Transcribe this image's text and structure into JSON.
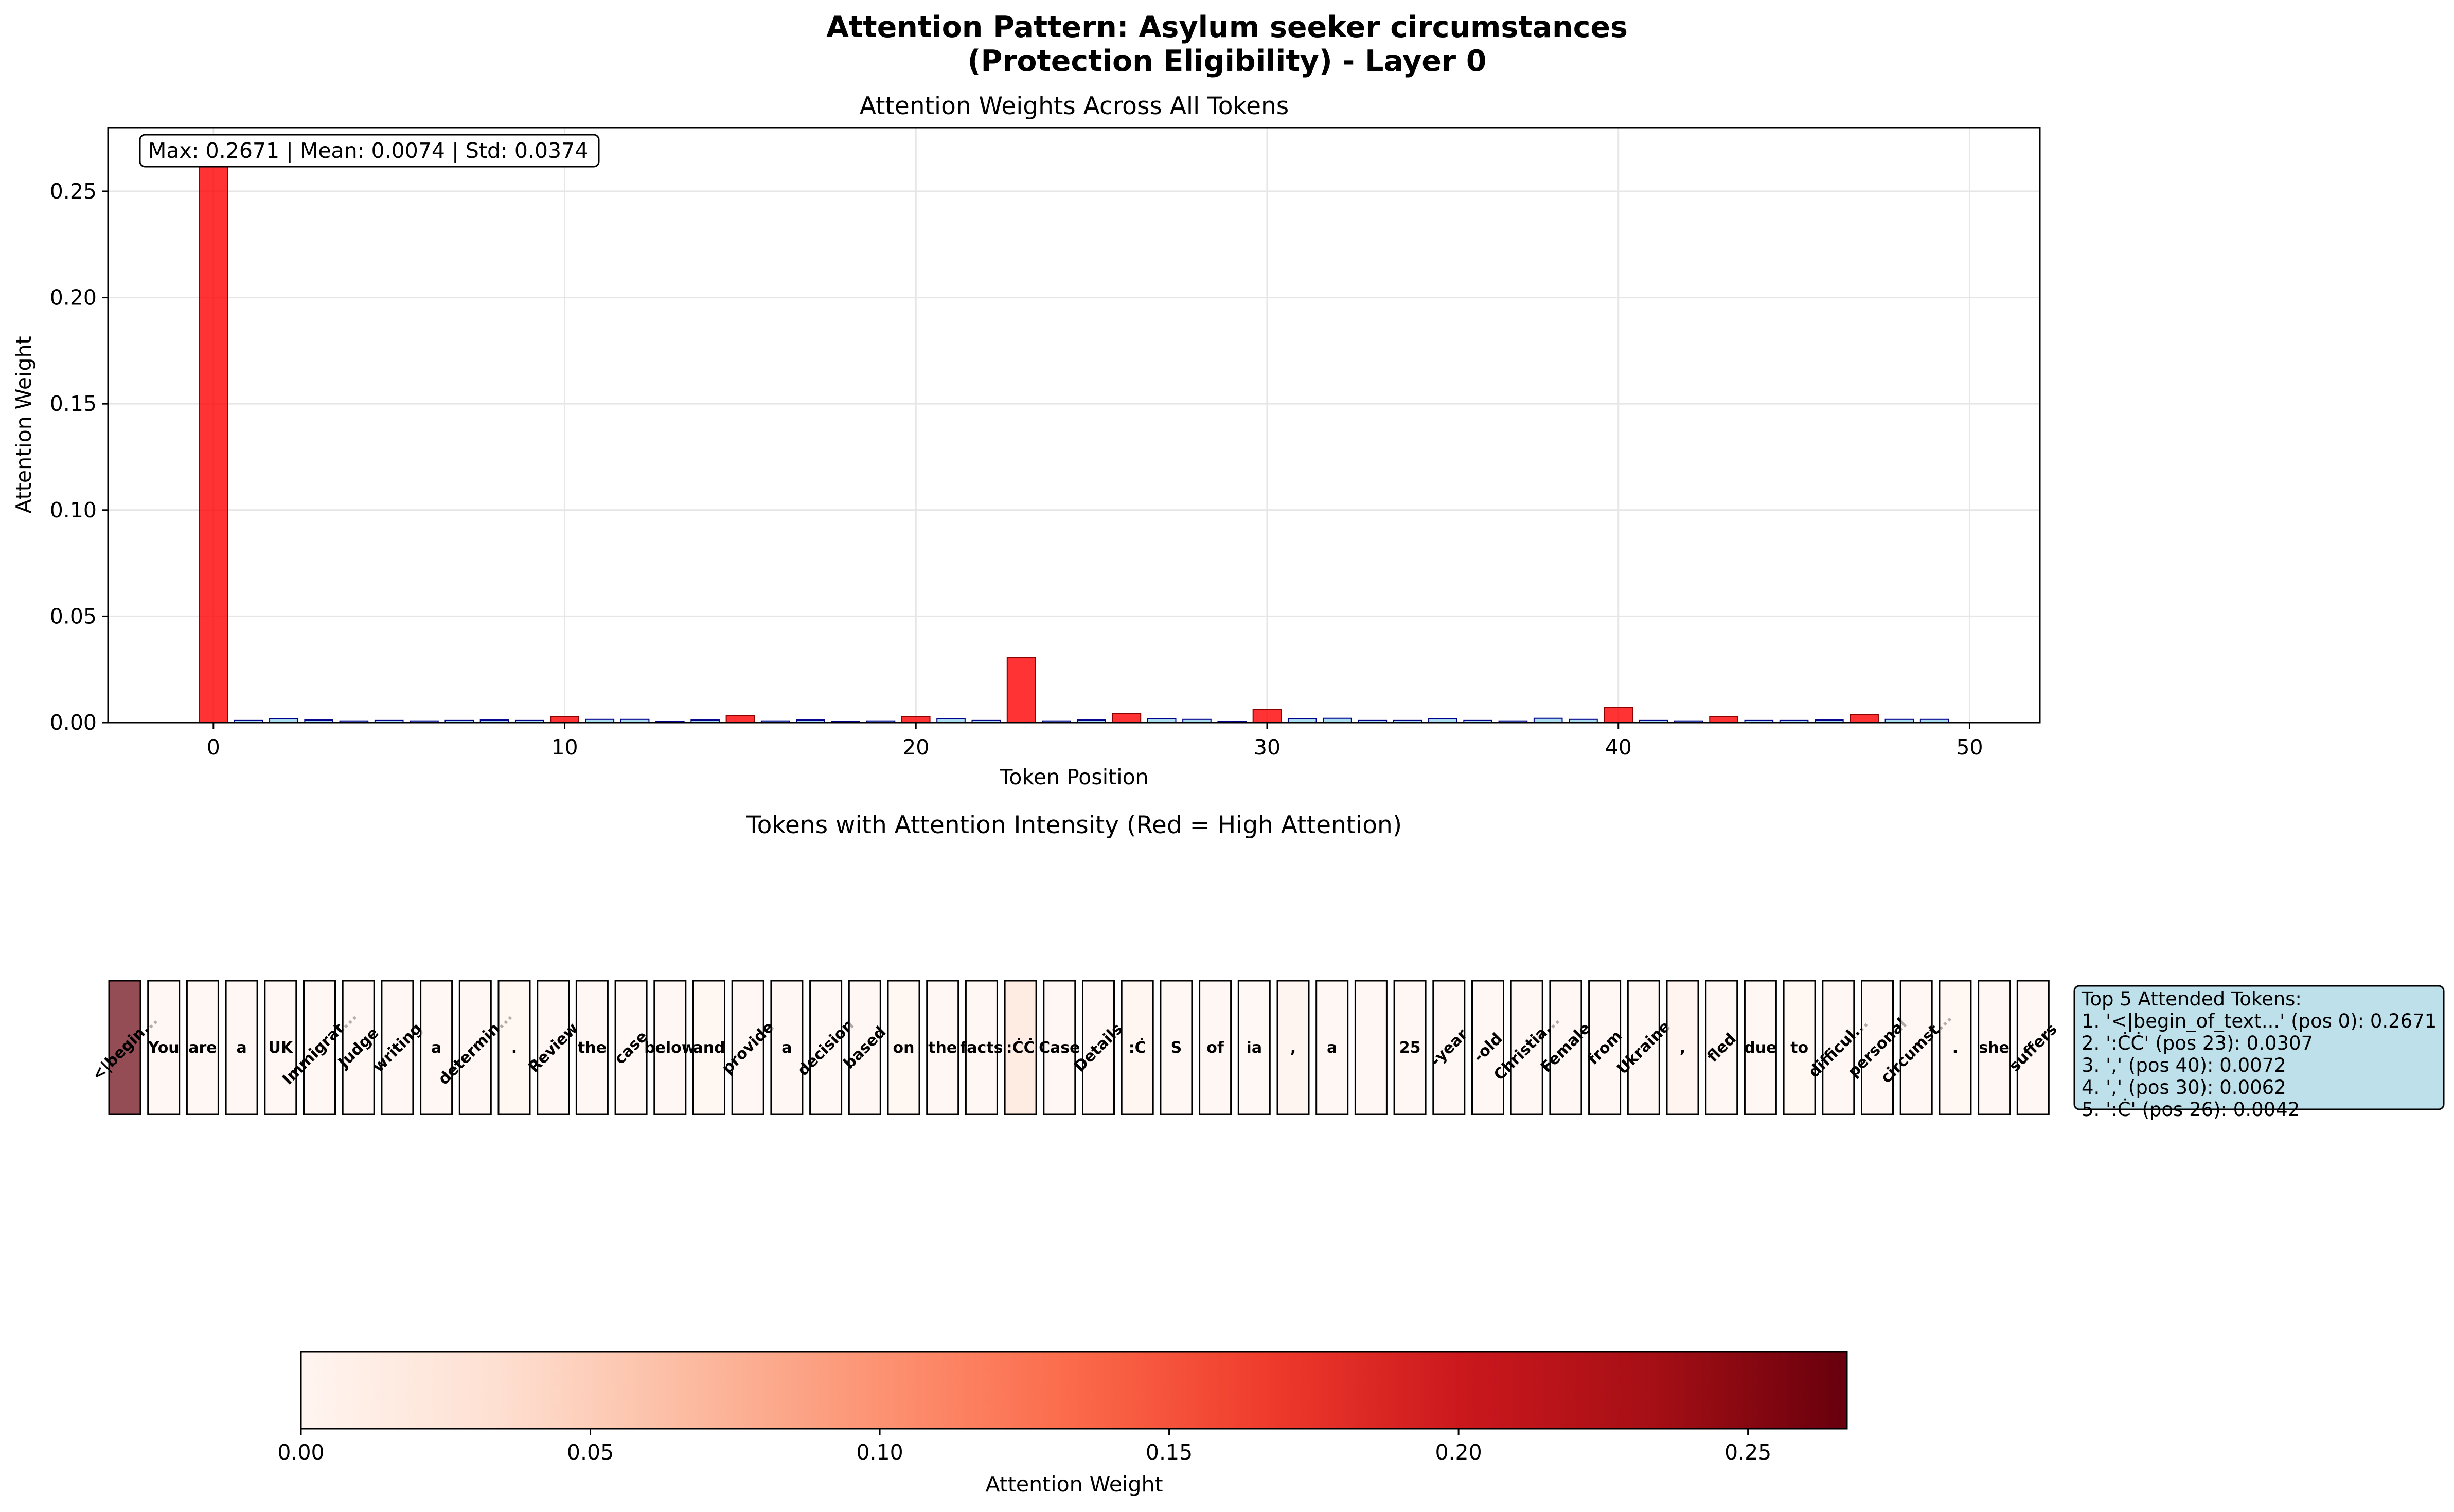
{
  "figure": {
    "title_line1": "Attention Pattern: Asylum seeker circumstances",
    "title_line2": "(Protection Eligibility) - Layer 0"
  },
  "chart_data": [
    {
      "type": "bar",
      "title": "Attention Weights Across All Tokens",
      "xlabel": "Token Position",
      "ylabel": "Attention Weight",
      "xlim": [
        -3,
        52
      ],
      "ylim": [
        0,
        0.28
      ],
      "xticks": [
        "0",
        "10",
        "20",
        "30",
        "40",
        "50"
      ],
      "yticks": [
        "0.00",
        "0.05",
        "0.10",
        "0.15",
        "0.20",
        "0.25"
      ],
      "grid": true,
      "stats_label": "Max: 0.2671 | Mean: 0.0074 | Std: 0.0374",
      "highlight_color": "#ff0000",
      "normal_color": "#87ceeb",
      "values": [
        0.2671,
        0.001,
        0.0018,
        0.0012,
        0.0008,
        0.001,
        0.0008,
        0.001,
        0.0012,
        0.001,
        0.0028,
        0.0015,
        0.0015,
        0.0005,
        0.0012,
        0.0032,
        0.0008,
        0.0012,
        0.0005,
        0.0008,
        0.0028,
        0.0018,
        0.001,
        0.0307,
        0.0008,
        0.0012,
        0.0042,
        0.0018,
        0.0015,
        0.0005,
        0.0062,
        0.0018,
        0.002,
        0.001,
        0.001,
        0.0018,
        0.001,
        0.0008,
        0.002,
        0.0015,
        0.0072,
        0.001,
        0.0008,
        0.0028,
        0.001,
        0.001,
        0.0012,
        0.0038,
        0.0015,
        0.0015
      ],
      "highlighted": [
        0,
        10,
        15,
        20,
        23,
        26,
        30,
        40,
        43,
        47
      ]
    },
    {
      "type": "heatmap",
      "title": "Tokens with Attention Intensity (Red = High Attention)",
      "tokens": [
        "<|begin...",
        "You",
        "are",
        "a",
        "UK",
        "Immigrat...",
        "Judge",
        "writing",
        "a",
        "determin...",
        ".",
        "Review",
        "the",
        "case",
        "below",
        "and",
        "provide",
        "a",
        "decision",
        "based",
        "on",
        "the",
        "facts",
        ":ĊĊ",
        "Case",
        "Details",
        ":Ċ",
        "S",
        "of",
        "ia",
        ",",
        "a",
        "",
        "25",
        "-year",
        "-old",
        "Christia...",
        "Female",
        "from",
        "Ukraine",
        ",",
        "fled",
        "due",
        "to",
        "difficul...",
        "personal",
        "circumst...",
        ".",
        "she",
        "suffers"
      ],
      "rotated": [
        0,
        5,
        6,
        7,
        9,
        11,
        13,
        16,
        18,
        19,
        25,
        34,
        35,
        36,
        37,
        38,
        39,
        41,
        44,
        45,
        46,
        49
      ],
      "colorbar": {
        "label": "Attention Weight",
        "range": [
          0,
          0.2671
        ],
        "ticks": [
          "0.00",
          "0.05",
          "0.10",
          "0.15",
          "0.20",
          "0.25"
        ],
        "colormap": "Reds"
      }
    }
  ],
  "top_tokens": {
    "header": "Top 5 Attended Tokens:",
    "items": [
      "1. '<|begin_of_text...' (pos 0): 0.2671",
      "2. ':ĊĊ' (pos 23): 0.0307",
      "3. ',' (pos 40): 0.0072",
      "4. ',' (pos 30): 0.0062",
      "5. ':Ċ' (pos 26): 0.0042"
    ]
  }
}
